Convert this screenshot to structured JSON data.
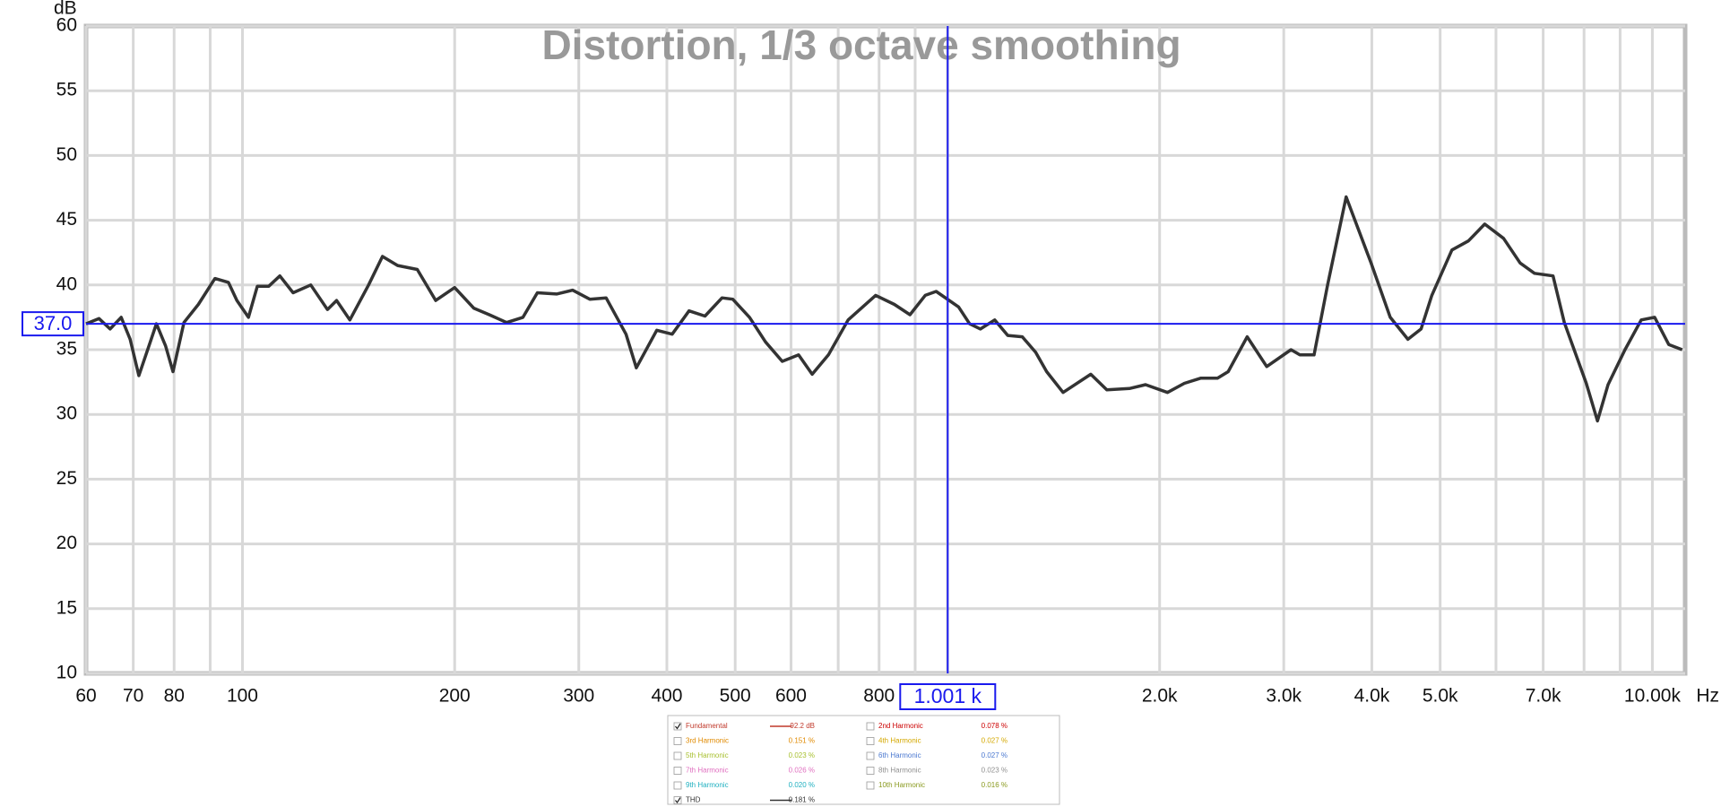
{
  "chart_data": {
    "type": "line",
    "title": "Distortion, 1/3 octave smoothing",
    "y_label": "dB",
    "x_label": "Hz",
    "log_x": true,
    "grid": true,
    "xlim": [
      60,
      11130
    ],
    "ylim": [
      10,
      60
    ],
    "yticks": [
      10,
      15,
      20,
      25,
      30,
      35,
      40,
      45,
      50,
      55,
      60
    ],
    "xticks": [
      60,
      70,
      80,
      100,
      200,
      300,
      400,
      500,
      600,
      800,
      {
        "value": 2000,
        "label": "2.0k"
      },
      {
        "value": 3000,
        "label": "3.0k"
      },
      {
        "value": 4000,
        "label": "4.0k"
      },
      {
        "value": 5000,
        "label": "5.0k"
      },
      {
        "value": 7000,
        "label": "7.0k"
      },
      {
        "value": 10000,
        "label": "10.00k"
      }
    ],
    "xgrid": [
      90,
      700,
      900,
      1000,
      6000,
      8000,
      9000
    ],
    "x": [
      60,
      62.6,
      64.9,
      67.3,
      69.3,
      71.3,
      73.7,
      75.5,
      77.8,
      79.7,
      82.6,
      86.6,
      91.4,
      95.5,
      98.2,
      102,
      105,
      109,
      113,
      118,
      125,
      132,
      136,
      142,
      151,
      158,
      166,
      177,
      188,
      200,
      213,
      224,
      237,
      250,
      262,
      279,
      294,
      311,
      328,
      350,
      362,
      387,
      407,
      430,
      453,
      479,
      496,
      524,
      552,
      583,
      615,
      643,
      678,
      723,
      791,
      841,
      885,
      930,
      964,
      1037,
      1075,
      1114,
      1167,
      1218,
      1277,
      1334,
      1383,
      1459,
      1597,
      1683,
      1812,
      1910,
      2052,
      2168,
      2286,
      2416,
      2502,
      2662,
      2838,
      3072,
      3162,
      3312,
      3462,
      3678,
      3990,
      4248,
      4500,
      4698,
      4866,
      5196,
      5484,
      5784,
      6150,
      6492,
      6804,
      7230,
      7500,
      8058,
      8358,
      8652,
      9144,
      9642,
      10074,
      10548,
      11022
    ],
    "series": [
      {
        "name": "THD",
        "color": "#333333",
        "values": [
          37.0,
          37.4,
          36.6,
          37.5,
          35.8,
          33.0,
          35.3,
          37.0,
          35.3,
          33.3,
          37.1,
          38.5,
          40.5,
          40.2,
          38.8,
          37.5,
          39.9,
          39.9,
          40.7,
          39.4,
          40.0,
          38.1,
          38.8,
          37.3,
          40.0,
          42.2,
          41.5,
          41.2,
          38.8,
          39.8,
          38.2,
          37.7,
          37.1,
          37.5,
          39.4,
          39.3,
          39.6,
          38.9,
          39.0,
          36.2,
          33.6,
          36.5,
          36.2,
          38.0,
          37.6,
          39.0,
          38.9,
          37.5,
          35.6,
          34.1,
          34.6,
          33.1,
          34.6,
          37.3,
          39.2,
          38.5,
          37.7,
          39.2,
          39.5,
          38.3,
          37.0,
          36.6,
          37.3,
          36.1,
          36.0,
          34.8,
          33.3,
          31.7,
          33.1,
          31.9,
          32.0,
          32.3,
          31.7,
          32.4,
          32.8,
          32.8,
          33.3,
          36.0,
          33.7,
          35.0,
          34.6,
          34.6,
          40.0,
          46.8,
          41.7,
          37.5,
          35.8,
          36.6,
          39.2,
          42.7,
          43.4,
          44.7,
          43.6,
          41.7,
          40.9,
          40.7,
          37.1,
          32.4,
          29.5,
          32.3,
          35.0,
          37.3,
          37.5,
          35.4,
          35.0
        ]
      }
    ],
    "cursor": {
      "color": "#1a1aee",
      "x": {
        "value": 1001,
        "label": "1.001 k"
      },
      "y": {
        "value": 37,
        "label": "37.0"
      }
    },
    "legend_table": [
      {
        "name": "Fundamental",
        "reading": "92.2 dB",
        "color": "#c0392b",
        "checked": true,
        "show_line": true
      },
      {
        "name": "2nd Harmonic",
        "reading": "0.078 %",
        "color": "#cc0000",
        "checked": false,
        "show_line": false
      },
      {
        "name": "3rd Harmonic",
        "reading": "0.151 %",
        "color": "#e08a00",
        "checked": false,
        "show_line": false
      },
      {
        "name": "4th Harmonic",
        "reading": "0.027 %",
        "color": "#d4a800",
        "checked": false,
        "show_line": false
      },
      {
        "name": "5th Harmonic",
        "reading": "0.023 %",
        "color": "#a8c030",
        "checked": false,
        "show_line": false
      },
      {
        "name": "6th Harmonic",
        "reading": "0.027 %",
        "color": "#4a78d0",
        "checked": false,
        "show_line": false
      },
      {
        "name": "7th Harmonic",
        "reading": "0.026 %",
        "color": "#e070c0",
        "checked": false,
        "show_line": false
      },
      {
        "name": "8th Harmonic",
        "reading": "0.023 %",
        "color": "#909090",
        "checked": false,
        "show_line": false
      },
      {
        "name": "9th Harmonic",
        "reading": "0.020 %",
        "color": "#20b0c0",
        "checked": false,
        "show_line": false
      },
      {
        "name": "10th Harmonic",
        "reading": "0.016 %",
        "color": "#8a9a20",
        "checked": false,
        "show_line": false
      },
      {
        "name": "THD",
        "reading": "0.181 %",
        "color": "#333333",
        "checked": true,
        "show_line": true
      }
    ]
  }
}
